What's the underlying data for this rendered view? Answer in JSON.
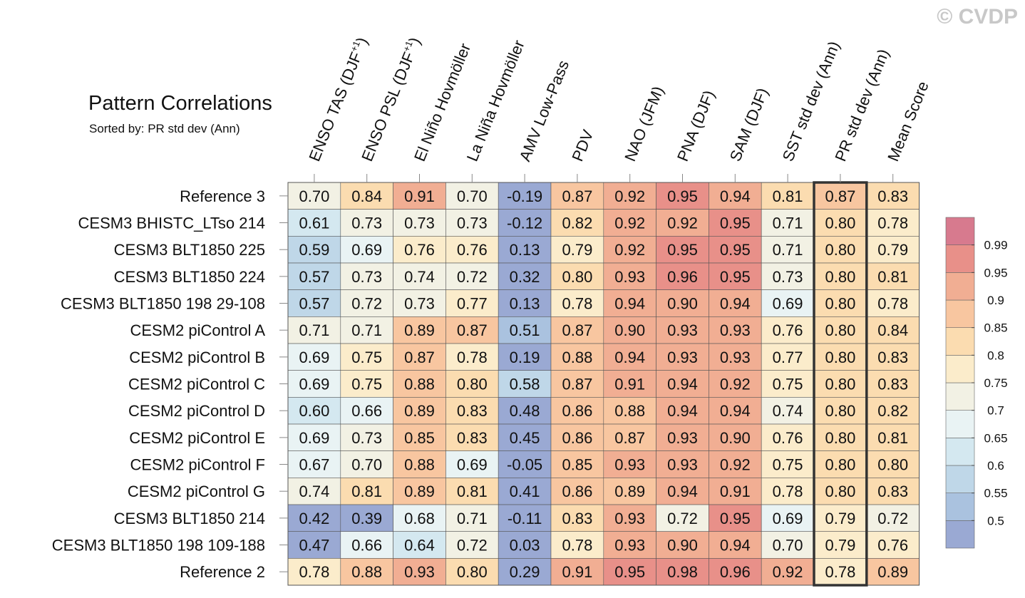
{
  "chart_data": {
    "type": "heatmap",
    "title": "Pattern Correlations",
    "subtitle": "Sorted by: PR std dev (Ann)",
    "watermark": "© CVDP",
    "columns": [
      "ENSO TAS (DJF+1)",
      "ENSO PSL (DJF+1)",
      "El Niño Hovmöller",
      "La Niña Hovmöller",
      "AMV Low-Pass",
      "PDV",
      "NAO (JFM)",
      "PNA (DJF)",
      "SAM (DJF)",
      "SST std dev (Ann)",
      "PR std dev (Ann)",
      "Mean Score"
    ],
    "column_parts": [
      {
        "main": "ENSO TAS (DJF",
        "sup": "+1",
        "close": ")"
      },
      {
        "main": "ENSO PSL (DJF",
        "sup": "+1",
        "close": ")"
      },
      {
        "main": "El Niño Hovmöller",
        "sup": "",
        "close": ""
      },
      {
        "main": "La Niña Hovmöller",
        "sup": "",
        "close": ""
      },
      {
        "main": "AMV Low-Pass",
        "sup": "",
        "close": ""
      },
      {
        "main": "PDV",
        "sup": "",
        "close": ""
      },
      {
        "main": "NAO (JFM)",
        "sup": "",
        "close": ""
      },
      {
        "main": "PNA (DJF)",
        "sup": "",
        "close": ""
      },
      {
        "main": "SAM (DJF)",
        "sup": "",
        "close": ""
      },
      {
        "main": "SST std dev (Ann)",
        "sup": "",
        "close": ""
      },
      {
        "main": "PR std dev (Ann)",
        "sup": "",
        "close": ""
      },
      {
        "main": "Mean Score",
        "sup": "",
        "close": ""
      }
    ],
    "highlighted_column": "PR std dev (Ann)",
    "rows": [
      "Reference 3",
      "CESM3 BHISTC_LTso 214",
      "CESM3 BLT1850 225",
      "CESM3 BLT1850 224",
      "CESM3 BLT1850 198 29-108",
      "CESM2 piControl A",
      "CESM2 piControl B",
      "CESM2 piControl C",
      "CESM2 piControl D",
      "CESM2 piControl E",
      "CESM2 piControl F",
      "CESM2 piControl G",
      "CESM3 BLT1850 214",
      "CESM3 BLT1850 198 109-188",
      "Reference 2"
    ],
    "values": [
      [
        "0.70",
        "0.84",
        "0.91",
        "0.70",
        "-0.19",
        "0.87",
        "0.92",
        "0.95",
        "0.94",
        "0.81",
        "0.87",
        "0.83"
      ],
      [
        "0.61",
        "0.73",
        "0.73",
        "0.73",
        "-0.12",
        "0.82",
        "0.92",
        "0.92",
        "0.95",
        "0.71",
        "0.80",
        "0.78"
      ],
      [
        "0.59",
        "0.69",
        "0.76",
        "0.76",
        "0.13",
        "0.79",
        "0.92",
        "0.95",
        "0.95",
        "0.71",
        "0.80",
        "0.79"
      ],
      [
        "0.57",
        "0.73",
        "0.74",
        "0.72",
        "0.32",
        "0.80",
        "0.93",
        "0.96",
        "0.95",
        "0.73",
        "0.80",
        "0.81"
      ],
      [
        "0.57",
        "0.72",
        "0.73",
        "0.77",
        "0.13",
        "0.78",
        "0.94",
        "0.90",
        "0.94",
        "0.69",
        "0.80",
        "0.78"
      ],
      [
        "0.71",
        "0.71",
        "0.89",
        "0.87",
        "0.51",
        "0.87",
        "0.90",
        "0.93",
        "0.93",
        "0.76",
        "0.80",
        "0.84"
      ],
      [
        "0.69",
        "0.75",
        "0.87",
        "0.78",
        "0.19",
        "0.88",
        "0.94",
        "0.93",
        "0.93",
        "0.77",
        "0.80",
        "0.83"
      ],
      [
        "0.69",
        "0.75",
        "0.88",
        "0.80",
        "0.58",
        "0.87",
        "0.91",
        "0.94",
        "0.92",
        "0.75",
        "0.80",
        "0.83"
      ],
      [
        "0.60",
        "0.66",
        "0.89",
        "0.83",
        "0.48",
        "0.86",
        "0.88",
        "0.94",
        "0.94",
        "0.74",
        "0.80",
        "0.82"
      ],
      [
        "0.69",
        "0.73",
        "0.85",
        "0.83",
        "0.45",
        "0.86",
        "0.87",
        "0.93",
        "0.90",
        "0.76",
        "0.80",
        "0.81"
      ],
      [
        "0.67",
        "0.70",
        "0.88",
        "0.69",
        "-0.05",
        "0.85",
        "0.93",
        "0.93",
        "0.92",
        "0.75",
        "0.80",
        "0.80"
      ],
      [
        "0.74",
        "0.81",
        "0.89",
        "0.81",
        "0.41",
        "0.86",
        "0.89",
        "0.94",
        "0.91",
        "0.78",
        "0.80",
        "0.83"
      ],
      [
        "0.42",
        "0.39",
        "0.68",
        "0.71",
        "-0.11",
        "0.83",
        "0.93",
        "0.72",
        "0.95",
        "0.69",
        "0.79",
        "0.72"
      ],
      [
        "0.47",
        "0.66",
        "0.64",
        "0.72",
        "0.03",
        "0.78",
        "0.93",
        "0.90",
        "0.94",
        "0.70",
        "0.79",
        "0.76"
      ],
      [
        "0.78",
        "0.88",
        "0.93",
        "0.80",
        "0.29",
        "0.91",
        "0.95",
        "0.98",
        "0.96",
        "0.92",
        "0.78",
        "0.89"
      ]
    ],
    "colorbar": {
      "levels": [
        0.5,
        0.55,
        0.6,
        0.65,
        0.7,
        0.75,
        0.8,
        0.85,
        0.9,
        0.95,
        0.99
      ],
      "labels": [
        "0.5",
        "0.55",
        "0.6",
        "0.65",
        "0.7",
        "0.75",
        "0.8",
        "0.85",
        "0.9",
        "0.95",
        "0.99"
      ],
      "colors": [
        "#9aa9d3",
        "#aac2df",
        "#bfd7e8",
        "#d4e8f0",
        "#e9f3f4",
        "#f2f1e4",
        "#fbeccb",
        "#fbdcb0",
        "#f8c6a0",
        "#f1ae93",
        "#e89089",
        "#d77a8e"
      ]
    },
    "border_color": "#555555",
    "highlight_color": "#333333"
  }
}
